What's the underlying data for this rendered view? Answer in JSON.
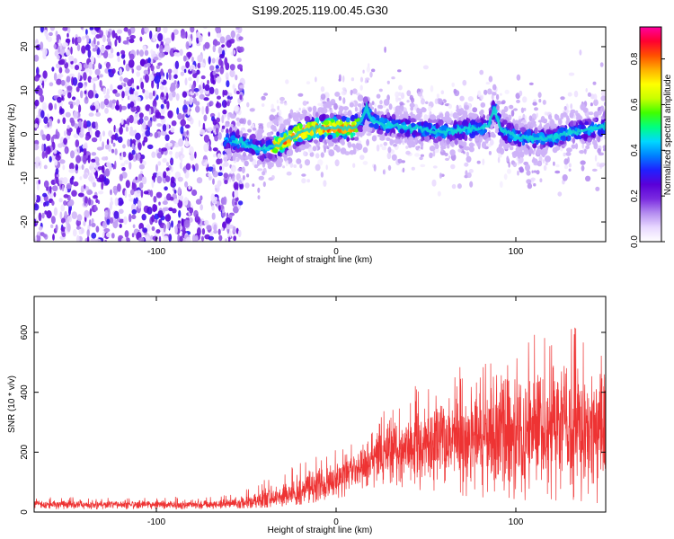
{
  "figure": {
    "title": "S199.2025.119.00.45.G30"
  },
  "chart_data": [
    {
      "type": "heatmap",
      "xlabel": "Height of straight line (km)",
      "ylabel": "Frequency (Hz)",
      "xlim": [
        -168,
        150
      ],
      "ylim": [
        -24.5,
        24.5
      ],
      "x_ticks": [
        -100,
        0,
        100
      ],
      "y_ticks": [
        -20,
        -10,
        0,
        10,
        20
      ],
      "grid": false,
      "colorbar": {
        "label": "Normalized spectral amplitude",
        "range": [
          0,
          0.94
        ],
        "ticks": [
          0.0,
          0.2,
          0.4,
          0.6,
          0.8
        ],
        "tick_labels": [
          "0.0",
          "0.2",
          "0.4",
          "0.6",
          "0.8"
        ],
        "colormap": [
          "#ffffff",
          "#e8d8ff",
          "#b48cf0",
          "#7a2ae0",
          "#5a00d8",
          "#2020ff",
          "#0080ff",
          "#00d8ff",
          "#00ff80",
          "#40ff00",
          "#c8ff00",
          "#ffff00",
          "#ffb000",
          "#ff5000",
          "#ff0030",
          "#ff00a0"
        ]
      },
      "ridge": {
        "x": [
          -60,
          -50,
          -40,
          -30,
          -20,
          -10,
          0,
          10,
          14,
          17,
          20,
          30,
          40,
          50,
          60,
          70,
          80,
          85,
          88,
          92,
          100,
          110,
          120,
          130,
          140,
          150
        ],
        "y": [
          -1,
          -2.5,
          -3.5,
          -2,
          0.5,
          1.5,
          1.5,
          1.5,
          3,
          6,
          3,
          2,
          1.5,
          1,
          0.5,
          1,
          1.5,
          2,
          6,
          1,
          -0.5,
          -1,
          -1,
          0.5,
          1,
          2
        ],
        "peak_amplitude": 0.9
      }
    },
    {
      "type": "line",
      "xlabel": "Height of straight line (km)",
      "ylabel": "SNR (10 * v/v)",
      "xlim": [
        -168,
        150
      ],
      "ylim": [
        0,
        720
      ],
      "x_ticks": [
        -100,
        0,
        100
      ],
      "y_ticks": [
        0,
        200,
        400,
        600
      ],
      "grid": false,
      "color": "#ee3333",
      "series": [
        {
          "envelope_x": [
            -168,
            -120,
            -80,
            -60,
            -40,
            -20,
            0,
            10,
            20,
            30,
            40,
            60,
            80,
            100,
            120,
            140,
            150
          ],
          "mean": [
            25,
            25,
            25,
            28,
            40,
            70,
            110,
            140,
            170,
            200,
            210,
            230,
            250,
            260,
            280,
            290,
            300
          ],
          "max": [
            50,
            50,
            55,
            60,
            110,
            180,
            220,
            230,
            300,
            390,
            420,
            460,
            520,
            560,
            640,
            700,
            600
          ],
          "min": [
            10,
            10,
            10,
            12,
            15,
            25,
            45,
            60,
            80,
            90,
            80,
            60,
            50,
            40,
            40,
            30,
            30
          ]
        }
      ]
    }
  ]
}
